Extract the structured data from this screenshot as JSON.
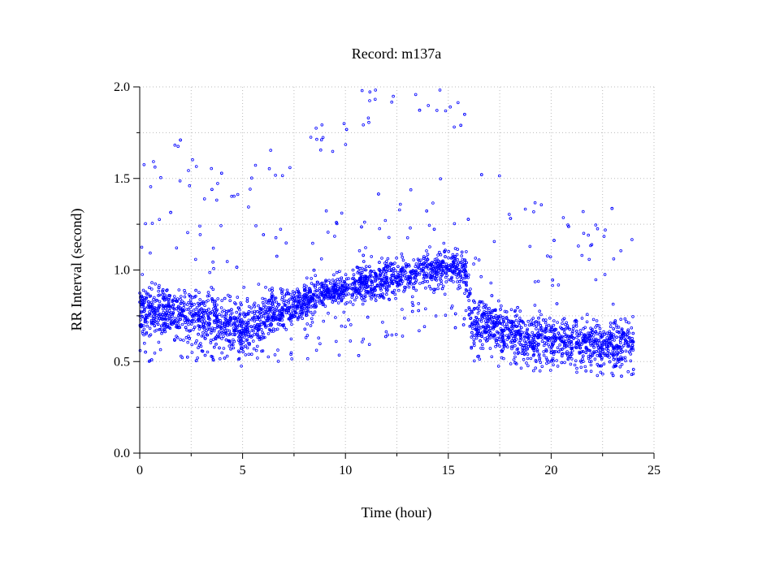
{
  "chart_data": {
    "type": "scatter",
    "title": "Record:  m137a",
    "xlabel": "Time (hour)",
    "ylabel": "RR Interval (second)",
    "xlim": [
      0,
      25
    ],
    "ylim": [
      0,
      2.0
    ],
    "x_ticks": [
      "0",
      "5",
      "10",
      "15",
      "20",
      "25"
    ],
    "x_tick_values": [
      0,
      5,
      10,
      15,
      20,
      25
    ],
    "y_ticks": [
      "0.0",
      "0.5",
      "1.0",
      "1.5",
      "2.0"
    ],
    "y_tick_values": [
      0,
      0.5,
      1.0,
      1.5,
      2.0
    ],
    "grid": true,
    "marker_color": "#0000ff",
    "series": [
      {
        "name": "RR intervals",
        "trend_hours": [
          0,
          1,
          2,
          3,
          4,
          5,
          6,
          7,
          8,
          9,
          10,
          11,
          12,
          13,
          14,
          15,
          15.9,
          16.1,
          17,
          18,
          19,
          20,
          21,
          22,
          23,
          24
        ],
        "trend_median": [
          0.78,
          0.78,
          0.75,
          0.75,
          0.72,
          0.68,
          0.74,
          0.78,
          0.82,
          0.88,
          0.9,
          0.93,
          0.95,
          0.97,
          1.0,
          1.02,
          1.0,
          0.72,
          0.7,
          0.65,
          0.63,
          0.62,
          0.62,
          0.6,
          0.6,
          0.6
        ],
        "trend_spread": [
          0.1,
          0.1,
          0.1,
          0.1,
          0.1,
          0.1,
          0.1,
          0.08,
          0.07,
          0.05,
          0.06,
          0.07,
          0.07,
          0.07,
          0.07,
          0.07,
          0.07,
          0.1,
          0.1,
          0.1,
          0.09,
          0.09,
          0.09,
          0.09,
          0.09,
          0.09
        ],
        "upper_outlier": [
          1.55,
          1.6,
          1.6,
          1.5,
          1.45,
          1.4,
          1.5,
          1.6,
          1.65,
          1.75,
          1.8,
          1.92,
          1.97,
          2.0,
          1.98,
          1.9,
          1.75,
          1.5,
          1.45,
          1.35,
          1.3,
          1.25,
          1.25,
          1.25,
          1.25,
          1.25
        ],
        "lower_outlier": [
          0.5,
          0.5,
          0.48,
          0.5,
          0.5,
          0.47,
          0.5,
          0.48,
          0.45,
          0.6,
          0.5,
          0.55,
          0.6,
          0.65,
          0.65,
          0.65,
          0.6,
          0.5,
          0.48,
          0.45,
          0.45,
          0.43,
          0.43,
          0.42,
          0.42,
          0.42
        ],
        "n_points_per_hour": 160
      }
    ]
  }
}
